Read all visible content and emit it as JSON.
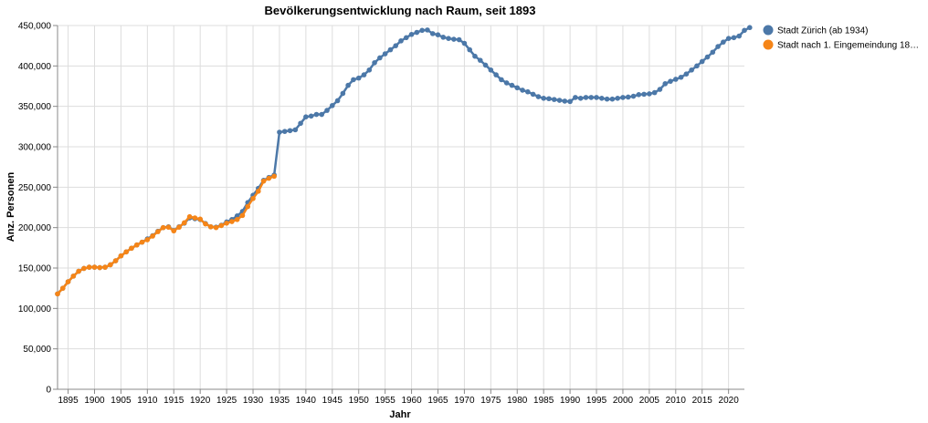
{
  "chart_data": {
    "type": "line",
    "title": "Bevölkerungsentwicklung nach Raum, seit 1893",
    "xlabel": "Jahr",
    "ylabel": "Anz. Personen",
    "xlim": [
      1893,
      2023
    ],
    "ylim": [
      0,
      450000
    ],
    "x_ticks": [
      1895,
      1900,
      1905,
      1910,
      1915,
      1920,
      1925,
      1930,
      1935,
      1940,
      1945,
      1950,
      1955,
      1960,
      1965,
      1970,
      1975,
      1980,
      1985,
      1990,
      1995,
      2000,
      2005,
      2010,
      2015,
      2020
    ],
    "y_ticks": [
      0,
      50000,
      100000,
      150000,
      200000,
      250000,
      300000,
      350000,
      400000,
      450000
    ],
    "y_tick_labels": [
      "0",
      "50,000",
      "100,000",
      "150,000",
      "200,000",
      "250,000",
      "300,000",
      "350,000",
      "400,000",
      "450,000"
    ],
    "grid": true,
    "legend_position": "right",
    "series": [
      {
        "name": "Stadt Zürich (ab 1934)",
        "color": "#4c78a8",
        "points": [
          [
            1893,
            118000
          ],
          [
            1894,
            125000
          ],
          [
            1895,
            133000
          ],
          [
            1896,
            140000
          ],
          [
            1897,
            146000
          ],
          [
            1898,
            149500
          ],
          [
            1899,
            151000
          ],
          [
            1900,
            151000
          ],
          [
            1901,
            150500
          ],
          [
            1902,
            151000
          ],
          [
            1903,
            154000
          ],
          [
            1904,
            159000
          ],
          [
            1905,
            165000
          ],
          [
            1906,
            170000
          ],
          [
            1907,
            174500
          ],
          [
            1908,
            178500
          ],
          [
            1909,
            182000
          ],
          [
            1910,
            186000
          ],
          [
            1911,
            190000
          ],
          [
            1912,
            195500
          ],
          [
            1913,
            200000
          ],
          [
            1914,
            201000
          ],
          [
            1915,
            196500
          ],
          [
            1916,
            201000
          ],
          [
            1917,
            205500
          ],
          [
            1918,
            212000
          ],
          [
            1919,
            211000
          ],
          [
            1920,
            210000
          ],
          [
            1921,
            205000
          ],
          [
            1922,
            201000
          ],
          [
            1923,
            200500
          ],
          [
            1924,
            203000
          ],
          [
            1925,
            207000
          ],
          [
            1926,
            210000
          ],
          [
            1927,
            214500
          ],
          [
            1928,
            220000
          ],
          [
            1929,
            231000
          ],
          [
            1930,
            240000
          ],
          [
            1931,
            248500
          ],
          [
            1932,
            258500
          ],
          [
            1933,
            262000
          ],
          [
            1934,
            265000
          ],
          [
            1935,
            318000
          ],
          [
            1936,
            319000
          ],
          [
            1937,
            320000
          ],
          [
            1938,
            321000
          ],
          [
            1939,
            329000
          ],
          [
            1940,
            337000
          ],
          [
            1941,
            338000
          ],
          [
            1942,
            340000
          ],
          [
            1943,
            340000
          ],
          [
            1944,
            345000
          ],
          [
            1945,
            351000
          ],
          [
            1946,
            357000
          ],
          [
            1947,
            366000
          ],
          [
            1948,
            376000
          ],
          [
            1949,
            383000
          ],
          [
            1950,
            385000
          ],
          [
            1951,
            389000
          ],
          [
            1952,
            395000
          ],
          [
            1953,
            404000
          ],
          [
            1954,
            410000
          ],
          [
            1955,
            415000
          ],
          [
            1956,
            420000
          ],
          [
            1957,
            425000
          ],
          [
            1958,
            431000
          ],
          [
            1959,
            435000
          ],
          [
            1960,
            439000
          ],
          [
            1961,
            441500
          ],
          [
            1962,
            444000
          ],
          [
            1963,
            444500
          ],
          [
            1964,
            440000
          ],
          [
            1965,
            438500
          ],
          [
            1966,
            435500
          ],
          [
            1967,
            434000
          ],
          [
            1968,
            433000
          ],
          [
            1969,
            432500
          ],
          [
            1970,
            428000
          ],
          [
            1971,
            420000
          ],
          [
            1972,
            412000
          ],
          [
            1973,
            407000
          ],
          [
            1974,
            401000
          ],
          [
            1975,
            395000
          ],
          [
            1976,
            389000
          ],
          [
            1977,
            383000
          ],
          [
            1978,
            379000
          ],
          [
            1979,
            376000
          ],
          [
            1980,
            373000
          ],
          [
            1981,
            370000
          ],
          [
            1982,
            368000
          ],
          [
            1983,
            365000
          ],
          [
            1984,
            362000
          ],
          [
            1985,
            360000
          ],
          [
            1986,
            359500
          ],
          [
            1987,
            358500
          ],
          [
            1988,
            357500
          ],
          [
            1989,
            356500
          ],
          [
            1990,
            356000
          ],
          [
            1991,
            361000
          ],
          [
            1992,
            360000
          ],
          [
            1993,
            361000
          ],
          [
            1994,
            361000
          ],
          [
            1995,
            361000
          ],
          [
            1996,
            360000
          ],
          [
            1997,
            359000
          ],
          [
            1998,
            359000
          ],
          [
            1999,
            360000
          ],
          [
            2000,
            361000
          ],
          [
            2001,
            361500
          ],
          [
            2002,
            362500
          ],
          [
            2003,
            364500
          ],
          [
            2004,
            365000
          ],
          [
            2005,
            365500
          ],
          [
            2006,
            367000
          ],
          [
            2007,
            371000
          ],
          [
            2008,
            378000
          ],
          [
            2009,
            381000
          ],
          [
            2010,
            383500
          ],
          [
            2011,
            386000
          ],
          [
            2012,
            390000
          ],
          [
            2013,
            395000
          ],
          [
            2014,
            400000
          ],
          [
            2015,
            405500
          ],
          [
            2016,
            411000
          ],
          [
            2017,
            417000
          ],
          [
            2018,
            424000
          ],
          [
            2019,
            429500
          ],
          [
            2020,
            434000
          ],
          [
            2021,
            435000
          ],
          [
            2022,
            437000
          ],
          [
            2023,
            444000
          ],
          [
            2024,
            447500
          ]
        ]
      },
      {
        "name": "Stadt nach 1. Eingemeindung 18…",
        "color": "#f58518",
        "points": [
          [
            1893,
            118000
          ],
          [
            1894,
            125000
          ],
          [
            1895,
            133000
          ],
          [
            1896,
            140000
          ],
          [
            1897,
            146000
          ],
          [
            1898,
            149500
          ],
          [
            1899,
            151000
          ],
          [
            1900,
            151000
          ],
          [
            1901,
            150500
          ],
          [
            1902,
            151000
          ],
          [
            1903,
            154000
          ],
          [
            1904,
            159000
          ],
          [
            1905,
            165000
          ],
          [
            1906,
            170000
          ],
          [
            1907,
            174500
          ],
          [
            1908,
            178500
          ],
          [
            1909,
            182000
          ],
          [
            1910,
            185000
          ],
          [
            1911,
            189500
          ],
          [
            1912,
            195000
          ],
          [
            1913,
            200000
          ],
          [
            1914,
            200500
          ],
          [
            1915,
            196000
          ],
          [
            1916,
            200500
          ],
          [
            1917,
            206000
          ],
          [
            1918,
            213500
          ],
          [
            1919,
            212000
          ],
          [
            1920,
            210500
          ],
          [
            1921,
            204500
          ],
          [
            1922,
            201000
          ],
          [
            1923,
            200000
          ],
          [
            1924,
            202500
          ],
          [
            1925,
            205500
          ],
          [
            1926,
            207500
          ],
          [
            1927,
            210000
          ],
          [
            1928,
            215000
          ],
          [
            1929,
            226000
          ],
          [
            1930,
            236000
          ],
          [
            1931,
            245000
          ],
          [
            1932,
            257500
          ],
          [
            1933,
            261000
          ],
          [
            1934,
            263500
          ]
        ]
      }
    ]
  }
}
